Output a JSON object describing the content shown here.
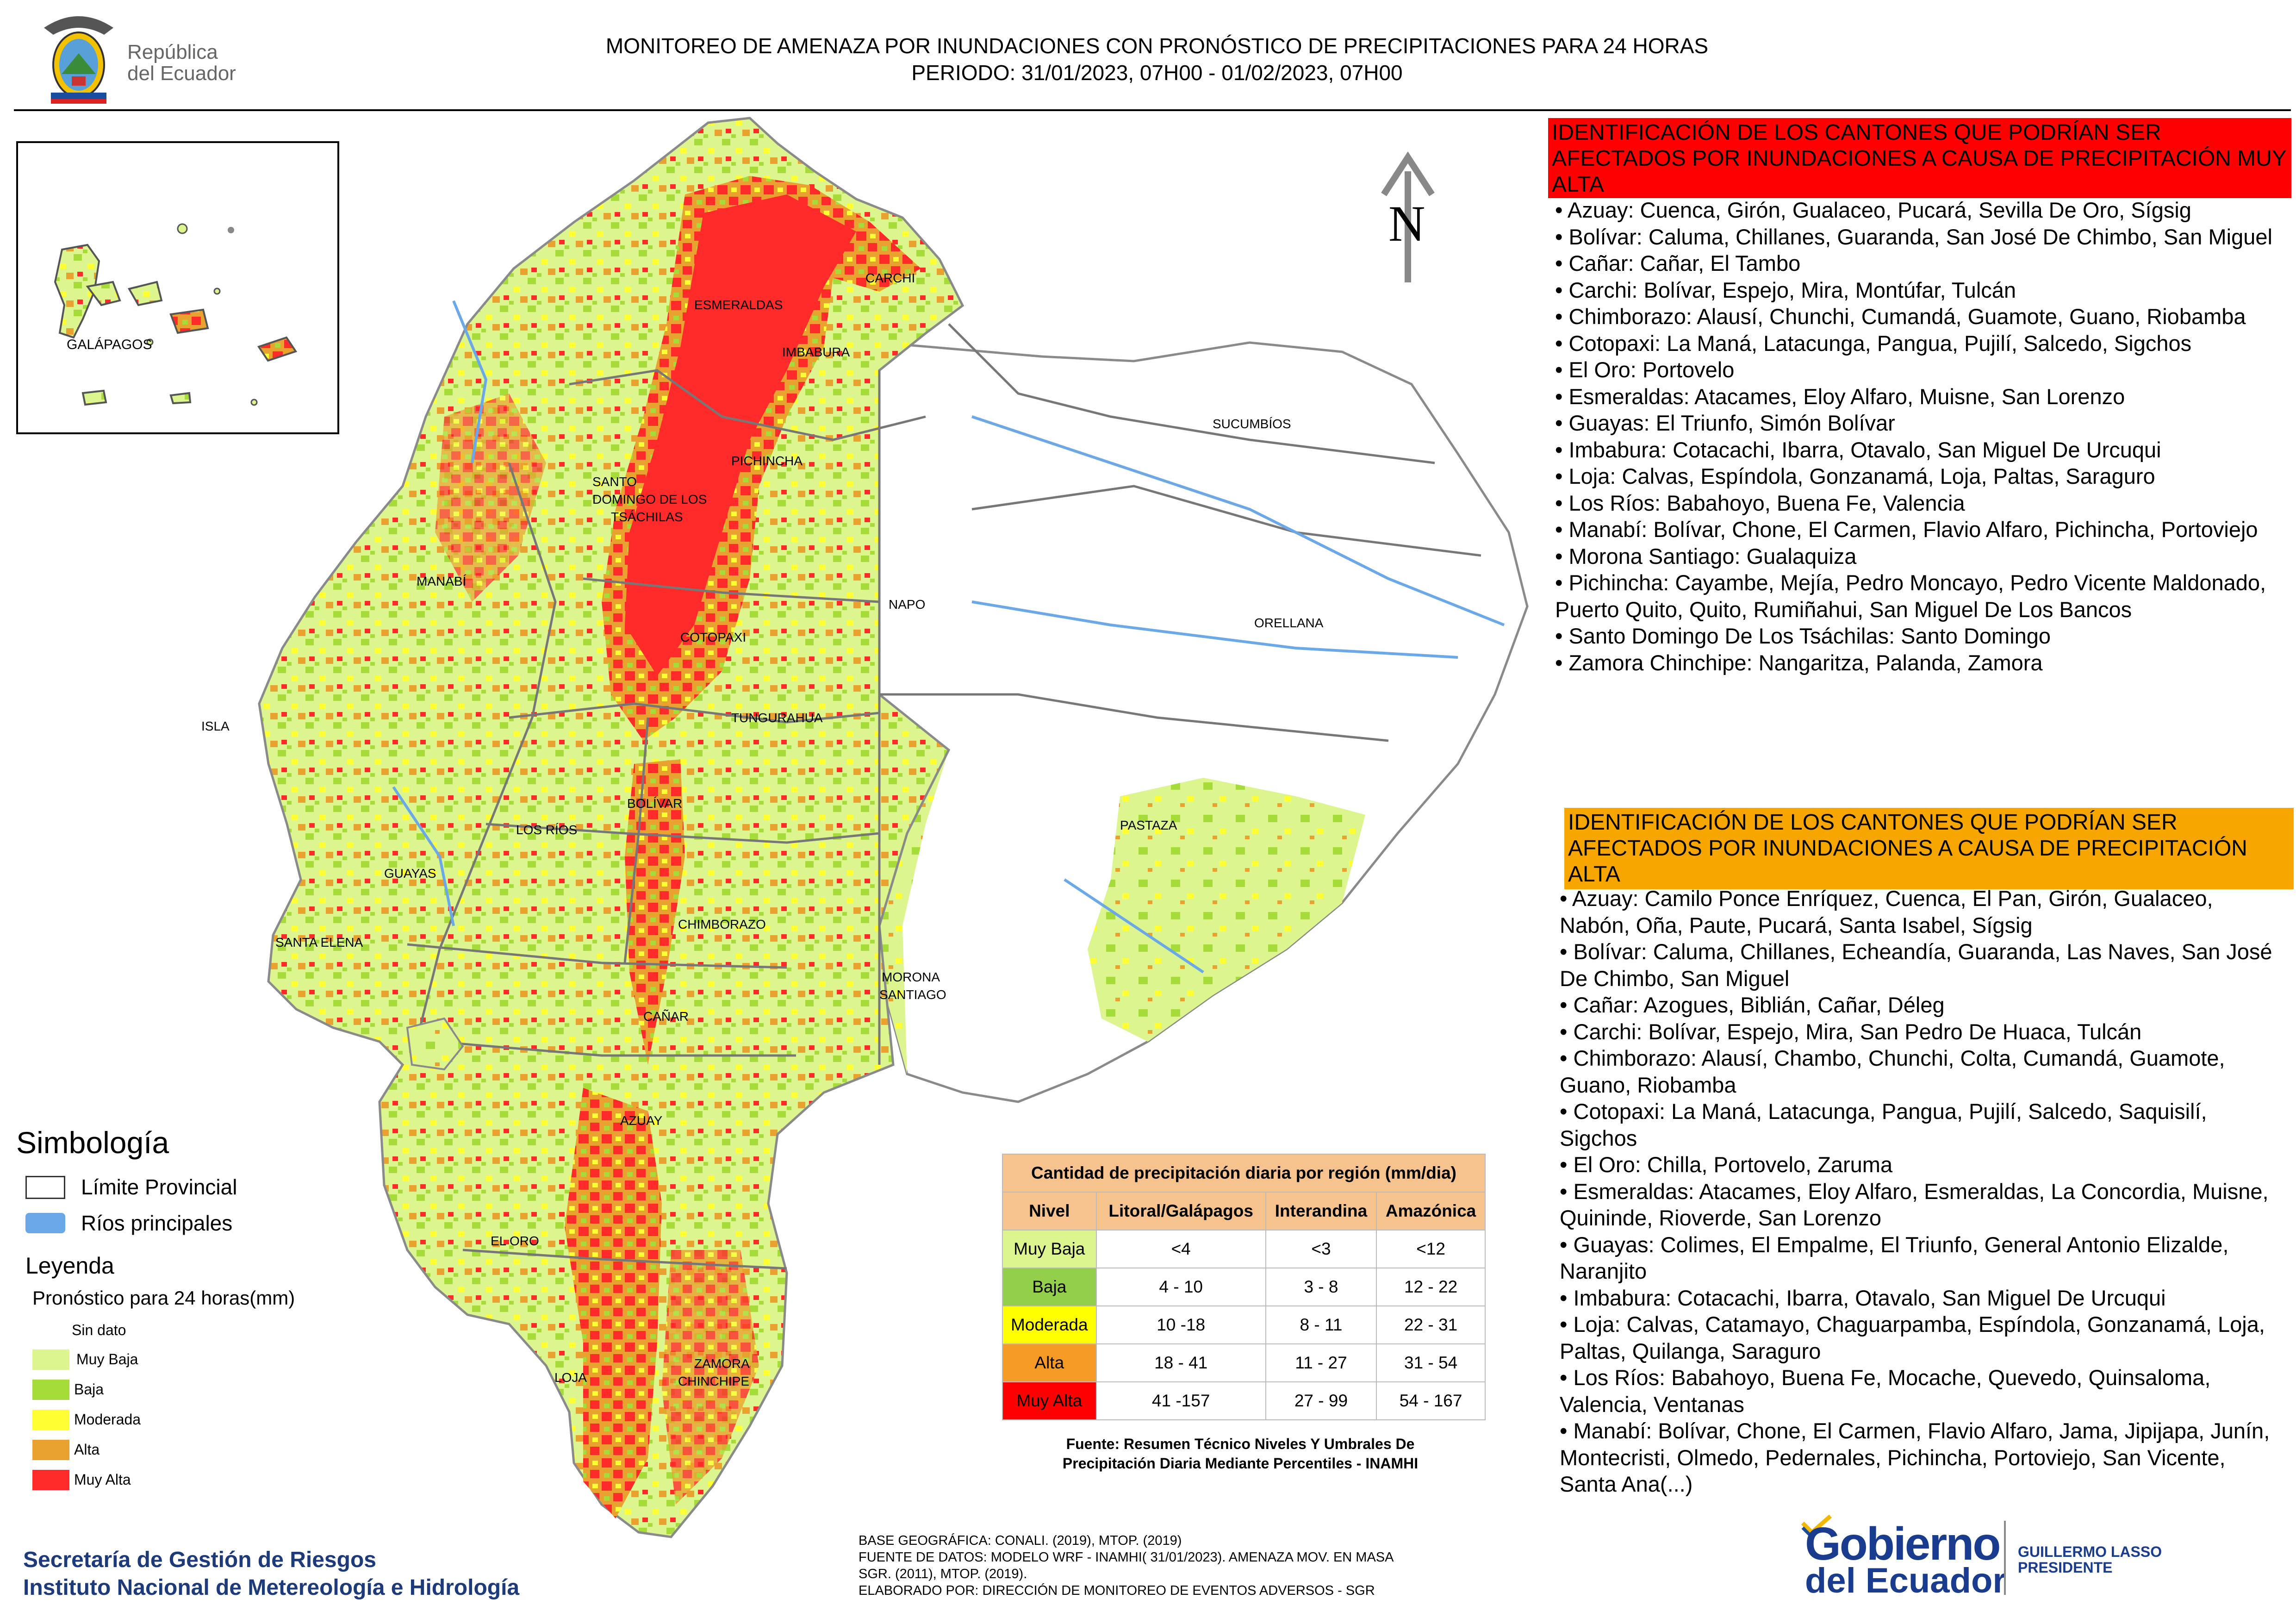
{
  "header": {
    "emblem_text_1": "República",
    "emblem_text_2": "del Ecuador",
    "title_line1": "MONITOREO DE AMENAZA POR INUNDACIONES  CON PRONÓSTICO DE  PRECIPITACIONES PARA 24 HORAS",
    "title_line2": "PERIODO: 31/01/2023, 07H00 - 01/02/2023, 07H00"
  },
  "map": {
    "north_label": "N",
    "inset_label": "GALÁPAGOS",
    "labels": [
      "ESMERALDAS",
      "CARCHI",
      "IMBABURA",
      "SUCUMBÍOS",
      "PICHINCHA",
      "SANTO",
      "DOMINGO DE LOS",
      "TSÁCHILAS",
      "MANABÍ",
      "NAPO",
      "ORELLANA",
      "COTOPAXI",
      "ISLA",
      "TUNGURAHUA",
      "BOLÍVAR",
      "LOS RÍOS",
      "PASTAZA",
      "GUAYAS",
      "SANTA ELENA",
      "CHIMBORAZO",
      "MORONA",
      "SANTIAGO",
      "CAÑAR",
      "AZUAY",
      "EL ORO",
      "ZAMORA",
      "CHINCHIPE",
      "LOJA"
    ],
    "colors": {
      "muy_baja": "#dcf58f",
      "baja": "#a6dc3a",
      "moderada": "#ffff33",
      "alta": "#e9a230",
      "muy_alta": "#ff2a2a",
      "sin_dato": "#ffffff",
      "rios": "#6aa8e8",
      "limite": "#8a8a8a"
    }
  },
  "red_panel": {
    "heading": "IDENTIFICACIÓN DE LOS CANTONES QUE PODRÍAN SER AFECTADOS POR INUNDACIONES  A CAUSA DE PRECIPITACIÓN MUY ALTA",
    "items": [
      "• Azuay: Cuenca, Girón, Gualaceo, Pucará, Sevilla De Oro, Sígsig",
      "• Bolívar: Caluma, Chillanes, Guaranda, San José De Chimbo, San Miguel",
      "• Cañar: Cañar, El Tambo",
      "• Carchi: Bolívar, Espejo, Mira, Montúfar, Tulcán",
      "• Chimborazo: Alausí, Chunchi, Cumandá, Guamote, Guano, Riobamba",
      "• Cotopaxi: La Maná, Latacunga, Pangua, Pujilí, Salcedo, Sigchos",
      "• El Oro: Portovelo",
      "• Esmeraldas: Atacames, Eloy Alfaro, Muisne, San Lorenzo",
      "• Guayas: El Triunfo, Simón Bolívar",
      "• Imbabura: Cotacachi, Ibarra, Otavalo, San Miguel De Urcuqui",
      "• Loja: Calvas, Espíndola, Gonzanamá, Loja, Paltas, Saraguro",
      "• Los Ríos: Babahoyo, Buena Fe, Valencia",
      "• Manabí: Bolívar, Chone, El Carmen, Flavio Alfaro, Pichincha, Portoviejo",
      "• Morona Santiago: Gualaquiza",
      "• Pichincha: Cayambe, Mejía, Pedro Moncayo, Pedro Vicente Maldonado, Puerto Quito, Quito, Rumiñahui, San Miguel De Los Bancos",
      "• Santo Domingo De Los Tsáchilas: Santo Domingo",
      "• Zamora Chinchipe: Nangaritza, Palanda, Zamora"
    ]
  },
  "orange_panel": {
    "heading": "IDENTIFICACIÓN DE LOS CANTONES QUE  PODRÍAN SER AFECTADOS POR INUNDACIONES  A CAUSA DE PRECIPITACIÓN ALTA",
    "items": [
      "• Azuay: Camilo Ponce Enríquez, Cuenca, El Pan, Girón, Gualaceo, Nabón, Oña, Paute, Pucará, Santa Isabel, Sígsig",
      "• Bolívar: Caluma, Chillanes, Echeandía, Guaranda, Las Naves, San José De Chimbo, San Miguel",
      "• Cañar: Azogues, Biblián, Cañar, Déleg",
      "• Carchi: Bolívar, Espejo, Mira, San Pedro De Huaca, Tulcán",
      "• Chimborazo: Alausí, Chambo, Chunchi, Colta, Cumandá, Guamote, Guano, Riobamba",
      "• Cotopaxi: La Maná, Latacunga, Pangua, Pujilí, Salcedo, Saquisilí, Sigchos",
      "• El Oro: Chilla, Portovelo, Zaruma",
      "• Esmeraldas: Atacames, Eloy Alfaro, Esmeraldas, La Concordia, Muisne, Quininde, Rioverde, San Lorenzo",
      "• Guayas: Colimes, El Empalme, El Triunfo, General Antonio Elizalde, Naranjito",
      "• Imbabura: Cotacachi, Ibarra, Otavalo, San Miguel De Urcuqui",
      "• Loja: Calvas, Catamayo, Chaguarpamba, Espíndola, Gonzanamá, Loja, Paltas, Quilanga, Saraguro",
      "• Los Ríos: Babahoyo, Buena Fe, Mocache, Quevedo, Quinsaloma, Valencia, Ventanas",
      "• Manabí: Bolívar, Chone, El Carmen, Flavio Alfaro, Jama, Jipijapa, Junín, Montecristi, Olmedo, Pedernales, Pichincha, Portoviejo, San Vicente, Santa Ana(...)"
    ]
  },
  "legend": {
    "simbologia_title": "Simbología",
    "limite_label": "Límite Provincial",
    "rios_label": "Ríos principales",
    "leyenda_title": "Leyenda",
    "pronostico_title": "Pronóstico para 24 horas(mm)",
    "items": [
      {
        "label": "Sin dato",
        "color": "#ffffff"
      },
      {
        "label": " Muy Baja",
        "color": "#dcf58f"
      },
      {
        "label": "Baja",
        "color": "#a6dc3a"
      },
      {
        "label": "Moderada",
        "color": "#ffff33"
      },
      {
        "label": "Alta",
        "color": "#e9a230"
      },
      {
        "label": "Muy Alta",
        "color": "#ff2a2a"
      }
    ]
  },
  "precip_table": {
    "title": "Cantidad de precipitación diaria por región (mm/dia)",
    "headers": [
      "Nivel",
      "Litoral/Galápagos",
      "Interandina",
      "Amazónica"
    ],
    "rows": [
      {
        "nivel": "Muy Baja",
        "color": "#dcf58f",
        "litoral": "<4",
        "interandina": "<3",
        "amazonica": "<12"
      },
      {
        "nivel": "Baja",
        "color": "#93cf4a",
        "litoral": "4 - 10",
        "interandina": "3 - 8",
        "amazonica": "12 - 22"
      },
      {
        "nivel": "Moderada",
        "color": "#ffff00",
        "litoral": "10 -18",
        "interandina": "8 - 11",
        "amazonica": "22 - 31"
      },
      {
        "nivel": "Alta",
        "color": "#f59a25",
        "litoral": "18 - 41",
        "interandina": "11 - 27",
        "amazonica": "31 - 54"
      },
      {
        "nivel": "Muy Alta",
        "color": "#ff0000",
        "litoral": "41 -157",
        "interandina": "27 - 99",
        "amazonica": "54 - 167"
      }
    ],
    "source_line1": "Fuente: Resumen Técnico Niveles Y Umbrales De",
    "source_line2": "Precipitación Diaria Mediante Percentiles - INAMHI"
  },
  "footer": {
    "org_line1": "Secretaría de Gestión de Riesgos",
    "org_line2": "Instituto Nacional de Metereología e Hidrología",
    "credits": [
      "BASE GEOGRÁFICA: CONALI. (2019), MTOP. (2019)",
      "FUENTE DE DATOS: MODELO WRF - INAMHI( 31/01/2023).  AMENAZA MOV. EN MASA",
      "SGR. (2011), MTOP. (2019).",
      "ELABORADO POR: DIRECCIÓN DE MONITOREO DE EVENTOS ADVERSOS - SGR"
    ],
    "gob_line1": "Gobierno",
    "gob_line2": "del Ecuador",
    "gob_person": "GUILLERMO LASSO",
    "gob_role": "PRESIDENTE"
  }
}
